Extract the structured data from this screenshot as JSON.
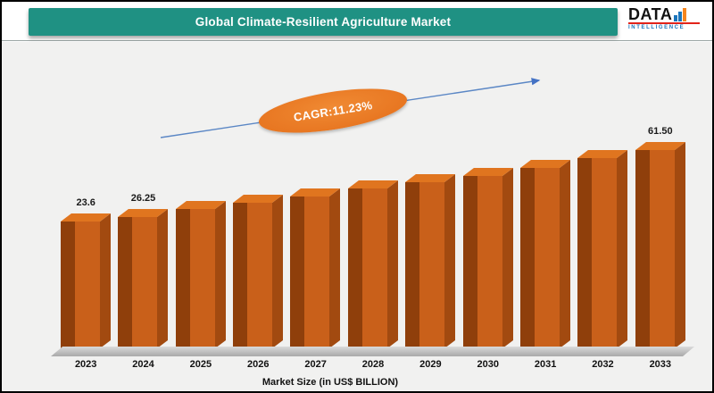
{
  "header": {
    "title": "Global Climate-Resilient Agriculture Market"
  },
  "logo": {
    "brand": "DATA",
    "tagline": "INTELLIGENCE"
  },
  "annotation": {
    "cagr_label": "CAGR:11.23%"
  },
  "axis": {
    "title": "Market Size (in US$ BILLION)"
  },
  "chart_data": {
    "type": "bar",
    "title": "Global Climate-Resilient Agriculture Market",
    "categories": [
      "2023",
      "2024",
      "2025",
      "2026",
      "2027",
      "2028",
      "2029",
      "2030",
      "2031",
      "2032",
      "2033"
    ],
    "values": [
      23.6,
      26.25,
      30.3,
      33.6,
      37.0,
      41.2,
      44.5,
      47.9,
      52.1,
      57.3,
      61.5
    ],
    "data_labels": [
      "23.6",
      "26.25",
      "",
      "",
      "",
      "",
      "",
      "",
      "",
      "",
      "61.50"
    ],
    "xlabel": "Market Size (in US$ BILLION)",
    "ylabel": "",
    "ylim": [
      0,
      70
    ],
    "grid": false,
    "legend": "none",
    "cagr": "11.23%",
    "colors": {
      "header_bg": "#1F9183",
      "bar_front": "#C9601A",
      "bar_side": "#8F3F0B",
      "bar_deep": "#A24A10",
      "bar_top": "#E0751F",
      "floor": "#C8C8C8",
      "cagr_ellipse": "#E87722",
      "arrow": "#4472C4"
    }
  }
}
